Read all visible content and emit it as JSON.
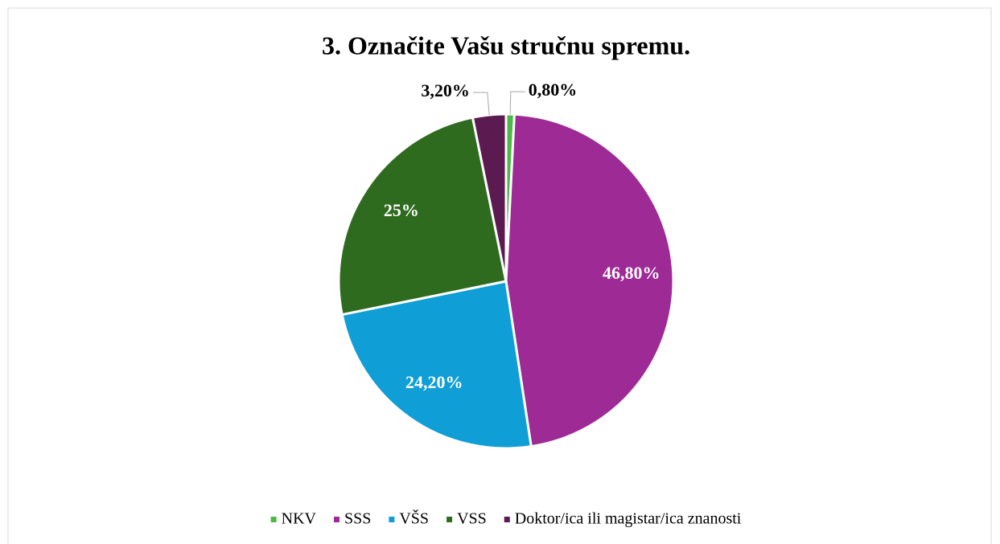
{
  "chart_data": {
    "type": "pie",
    "title": "3. Označite Vašu stručnu spremu.",
    "categories": [
      "NKV",
      "SSS",
      "VŠS",
      "VSS",
      "Doktor/ica ili magistar/ica znanosti"
    ],
    "values": [
      0.8,
      46.8,
      24.2,
      25,
      3.2
    ],
    "value_labels": [
      "0,80%",
      "46,80%",
      "24,20%",
      "25%",
      "3,20%"
    ],
    "colors": [
      "#4db848",
      "#9e2a96",
      "#0f9ed5",
      "#2f6b1e",
      "#5b1a50"
    ],
    "legend": "bottom"
  }
}
